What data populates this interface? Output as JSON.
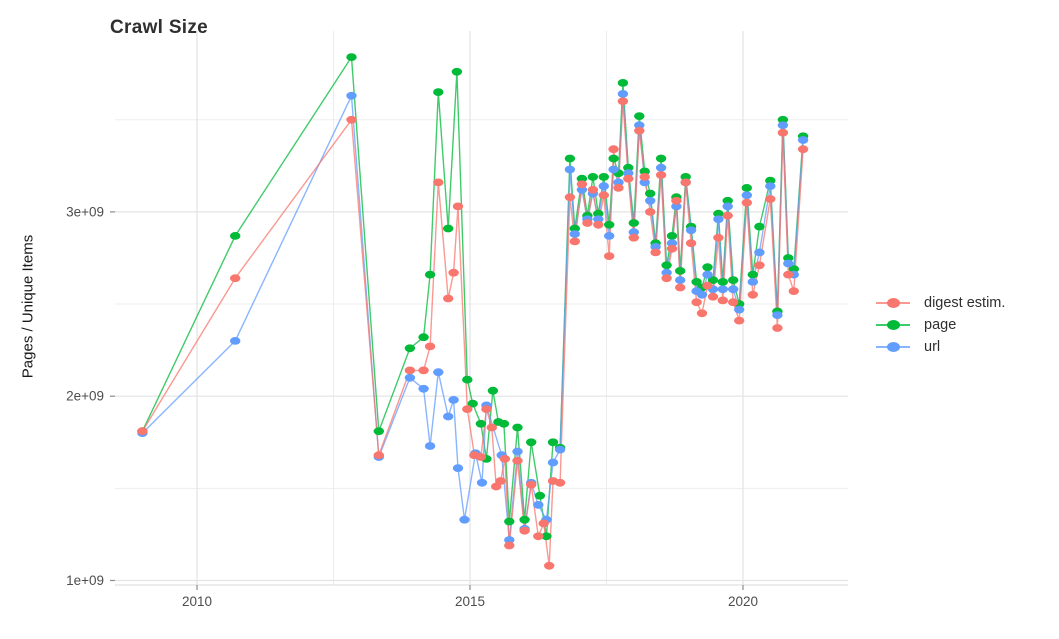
{
  "title": "Crawl Size",
  "y_axis": {
    "label": "Pages / Unique Items",
    "tick_labels": [
      "1e+09",
      "2e+09",
      "3e+09"
    ],
    "tick_values_e9": [
      1,
      2,
      3
    ],
    "minor_values_e9": [
      1.5,
      2.5,
      3.5
    ]
  },
  "x_axis": {
    "tick_labels": [
      "2010",
      "2015",
      "2020"
    ],
    "tick_values": [
      2010,
      2015,
      2020
    ],
    "minor_values": [
      2012.5,
      2017.5
    ]
  },
  "legend": {
    "position": "right",
    "items": [
      {
        "label": "digest estim.",
        "color": "#F8766D"
      },
      {
        "label": "page",
        "color": "#00BA38"
      },
      {
        "label": "url",
        "color": "#619CFF"
      }
    ]
  },
  "colors": {
    "grid_major": "#e3e3e3",
    "grid_minor": "#ededed",
    "axis_text": "#4d4d4d",
    "tick_mark": "#8c8c8c",
    "axis_line": "#e0e0e0"
  },
  "chart_data": {
    "type": "line",
    "title": "Crawl Size",
    "xlabel": "",
    "ylabel": "Pages / Unique Items",
    "units": "values are billions (1e9) of pages/unique items; x is decimal year",
    "x_range": [
      2008.5,
      2021.9
    ],
    "y_range_e9": [
      0.97,
      3.99
    ],
    "grid": "major and minor, light gray on white",
    "legend_position": "right",
    "series": [
      {
        "name": "page",
        "color": "#00BA38",
        "points": [
          [
            2009.0,
            1.81
          ],
          [
            2010.7,
            2.87
          ],
          [
            2012.83,
            3.84
          ],
          [
            2013.33,
            1.81
          ],
          [
            2013.9,
            2.26
          ],
          [
            2014.15,
            2.32
          ],
          [
            2014.27,
            2.66
          ],
          [
            2014.42,
            3.65
          ],
          [
            2014.6,
            2.91
          ],
          [
            2014.76,
            3.76
          ],
          [
            2014.95,
            2.09
          ],
          [
            2015.05,
            1.96
          ],
          [
            2015.2,
            1.85
          ],
          [
            2015.3,
            1.66
          ],
          [
            2015.42,
            2.03
          ],
          [
            2015.52,
            1.86
          ],
          [
            2015.62,
            1.85
          ],
          [
            2015.72,
            1.32
          ],
          [
            2015.87,
            1.83
          ],
          [
            2016.0,
            1.33
          ],
          [
            2016.12,
            1.75
          ],
          [
            2016.28,
            1.46
          ],
          [
            2016.4,
            1.24
          ],
          [
            2016.52,
            1.75
          ],
          [
            2016.65,
            1.72
          ],
          [
            2016.83,
            3.29
          ],
          [
            2016.92,
            2.91
          ],
          [
            2017.05,
            3.18
          ],
          [
            2017.15,
            2.98
          ],
          [
            2017.25,
            3.19
          ],
          [
            2017.35,
            2.99
          ],
          [
            2017.45,
            3.19
          ],
          [
            2017.55,
            2.93
          ],
          [
            2017.63,
            3.29
          ],
          [
            2017.72,
            3.21
          ],
          [
            2017.8,
            3.7
          ],
          [
            2017.9,
            3.24
          ],
          [
            2018.0,
            2.94
          ],
          [
            2018.1,
            3.52
          ],
          [
            2018.2,
            3.22
          ],
          [
            2018.3,
            3.1
          ],
          [
            2018.4,
            2.83
          ],
          [
            2018.5,
            3.29
          ],
          [
            2018.6,
            2.71
          ],
          [
            2018.7,
            2.87
          ],
          [
            2018.78,
            3.08
          ],
          [
            2018.85,
            2.68
          ],
          [
            2018.95,
            3.19
          ],
          [
            2019.05,
            2.92
          ],
          [
            2019.15,
            2.62
          ],
          [
            2019.25,
            2.59
          ],
          [
            2019.35,
            2.7
          ],
          [
            2019.45,
            2.63
          ],
          [
            2019.55,
            2.99
          ],
          [
            2019.63,
            2.62
          ],
          [
            2019.72,
            3.06
          ],
          [
            2019.82,
            2.63
          ],
          [
            2019.93,
            2.5
          ],
          [
            2020.07,
            3.13
          ],
          [
            2020.18,
            2.66
          ],
          [
            2020.3,
            2.92
          ],
          [
            2020.5,
            3.17
          ],
          [
            2020.63,
            2.46
          ],
          [
            2020.73,
            3.5
          ],
          [
            2020.83,
            2.75
          ],
          [
            2020.93,
            2.69
          ],
          [
            2021.1,
            3.41
          ]
        ]
      },
      {
        "name": "url",
        "color": "#619CFF",
        "points": [
          [
            2009.0,
            1.8
          ],
          [
            2010.7,
            2.3
          ],
          [
            2012.83,
            3.63
          ],
          [
            2013.33,
            1.67
          ],
          [
            2013.9,
            2.1
          ],
          [
            2014.15,
            2.04
          ],
          [
            2014.27,
            1.73
          ],
          [
            2014.42,
            2.13
          ],
          [
            2014.6,
            1.89
          ],
          [
            2014.7,
            1.98
          ],
          [
            2014.78,
            1.61
          ],
          [
            2014.9,
            1.33
          ],
          [
            2015.1,
            1.69
          ],
          [
            2015.22,
            1.53
          ],
          [
            2015.3,
            1.95
          ],
          [
            2015.58,
            1.68
          ],
          [
            2015.72,
            1.22
          ],
          [
            2015.87,
            1.7
          ],
          [
            2016.0,
            1.28
          ],
          [
            2016.12,
            1.53
          ],
          [
            2016.25,
            1.41
          ],
          [
            2016.4,
            1.33
          ],
          [
            2016.52,
            1.64
          ],
          [
            2016.65,
            1.71
          ],
          [
            2016.83,
            3.23
          ],
          [
            2016.92,
            2.88
          ],
          [
            2017.05,
            3.12
          ],
          [
            2017.15,
            2.96
          ],
          [
            2017.25,
            3.1
          ],
          [
            2017.35,
            2.96
          ],
          [
            2017.45,
            3.14
          ],
          [
            2017.55,
            2.87
          ],
          [
            2017.63,
            3.23
          ],
          [
            2017.72,
            3.16
          ],
          [
            2017.8,
            3.64
          ],
          [
            2017.9,
            3.21
          ],
          [
            2018.0,
            2.89
          ],
          [
            2018.1,
            3.47
          ],
          [
            2018.2,
            3.16
          ],
          [
            2018.3,
            3.06
          ],
          [
            2018.4,
            2.81
          ],
          [
            2018.5,
            3.24
          ],
          [
            2018.6,
            2.67
          ],
          [
            2018.7,
            2.83
          ],
          [
            2018.78,
            3.03
          ],
          [
            2018.85,
            2.63
          ],
          [
            2018.95,
            3.16
          ],
          [
            2019.05,
            2.9
          ],
          [
            2019.15,
            2.57
          ],
          [
            2019.25,
            2.55
          ],
          [
            2019.35,
            2.66
          ],
          [
            2019.45,
            2.58
          ],
          [
            2019.55,
            2.96
          ],
          [
            2019.63,
            2.58
          ],
          [
            2019.72,
            3.03
          ],
          [
            2019.82,
            2.58
          ],
          [
            2019.93,
            2.47
          ],
          [
            2020.07,
            3.09
          ],
          [
            2020.18,
            2.62
          ],
          [
            2020.3,
            2.78
          ],
          [
            2020.5,
            3.14
          ],
          [
            2020.63,
            2.44
          ],
          [
            2020.73,
            3.47
          ],
          [
            2020.83,
            2.72
          ],
          [
            2020.93,
            2.66
          ],
          [
            2021.1,
            3.39
          ]
        ]
      },
      {
        "name": "digest estim.",
        "color": "#F8766D",
        "points": [
          [
            2009.0,
            1.81
          ],
          [
            2010.7,
            2.64
          ],
          [
            2012.83,
            3.5
          ],
          [
            2013.33,
            1.68
          ],
          [
            2013.9,
            2.14
          ],
          [
            2014.15,
            2.14
          ],
          [
            2014.27,
            2.27
          ],
          [
            2014.42,
            3.16
          ],
          [
            2014.6,
            2.53
          ],
          [
            2014.7,
            2.67
          ],
          [
            2014.78,
            3.03
          ],
          [
            2014.95,
            1.93
          ],
          [
            2015.08,
            1.68
          ],
          [
            2015.2,
            1.67
          ],
          [
            2015.3,
            1.93
          ],
          [
            2015.4,
            1.83
          ],
          [
            2015.48,
            1.51
          ],
          [
            2015.56,
            1.54
          ],
          [
            2015.64,
            1.66
          ],
          [
            2015.72,
            1.19
          ],
          [
            2015.87,
            1.65
          ],
          [
            2016.0,
            1.27
          ],
          [
            2016.12,
            1.52
          ],
          [
            2016.25,
            1.24
          ],
          [
            2016.35,
            1.31
          ],
          [
            2016.45,
            1.08
          ],
          [
            2016.52,
            1.54
          ],
          [
            2016.65,
            1.53
          ],
          [
            2016.83,
            3.08
          ],
          [
            2016.92,
            2.84
          ],
          [
            2017.05,
            3.15
          ],
          [
            2017.15,
            2.94
          ],
          [
            2017.25,
            3.12
          ],
          [
            2017.35,
            2.93
          ],
          [
            2017.45,
            3.09
          ],
          [
            2017.55,
            2.76
          ],
          [
            2017.63,
            3.34
          ],
          [
            2017.72,
            3.13
          ],
          [
            2017.8,
            3.6
          ],
          [
            2017.9,
            3.18
          ],
          [
            2018.0,
            2.86
          ],
          [
            2018.1,
            3.44
          ],
          [
            2018.2,
            3.19
          ],
          [
            2018.3,
            3.0
          ],
          [
            2018.4,
            2.78
          ],
          [
            2018.5,
            3.2
          ],
          [
            2018.6,
            2.64
          ],
          [
            2018.7,
            2.8
          ],
          [
            2018.78,
            3.06
          ],
          [
            2018.85,
            2.59
          ],
          [
            2018.95,
            3.16
          ],
          [
            2019.05,
            2.83
          ],
          [
            2019.15,
            2.51
          ],
          [
            2019.25,
            2.45
          ],
          [
            2019.35,
            2.6
          ],
          [
            2019.45,
            2.54
          ],
          [
            2019.55,
            2.86
          ],
          [
            2019.63,
            2.52
          ],
          [
            2019.72,
            2.98
          ],
          [
            2019.82,
            2.51
          ],
          [
            2019.93,
            2.41
          ],
          [
            2020.07,
            3.05
          ],
          [
            2020.18,
            2.55
          ],
          [
            2020.3,
            2.71
          ],
          [
            2020.5,
            3.07
          ],
          [
            2020.63,
            2.37
          ],
          [
            2020.73,
            3.43
          ],
          [
            2020.83,
            2.66
          ],
          [
            2020.93,
            2.57
          ],
          [
            2021.1,
            3.34
          ]
        ]
      }
    ]
  }
}
